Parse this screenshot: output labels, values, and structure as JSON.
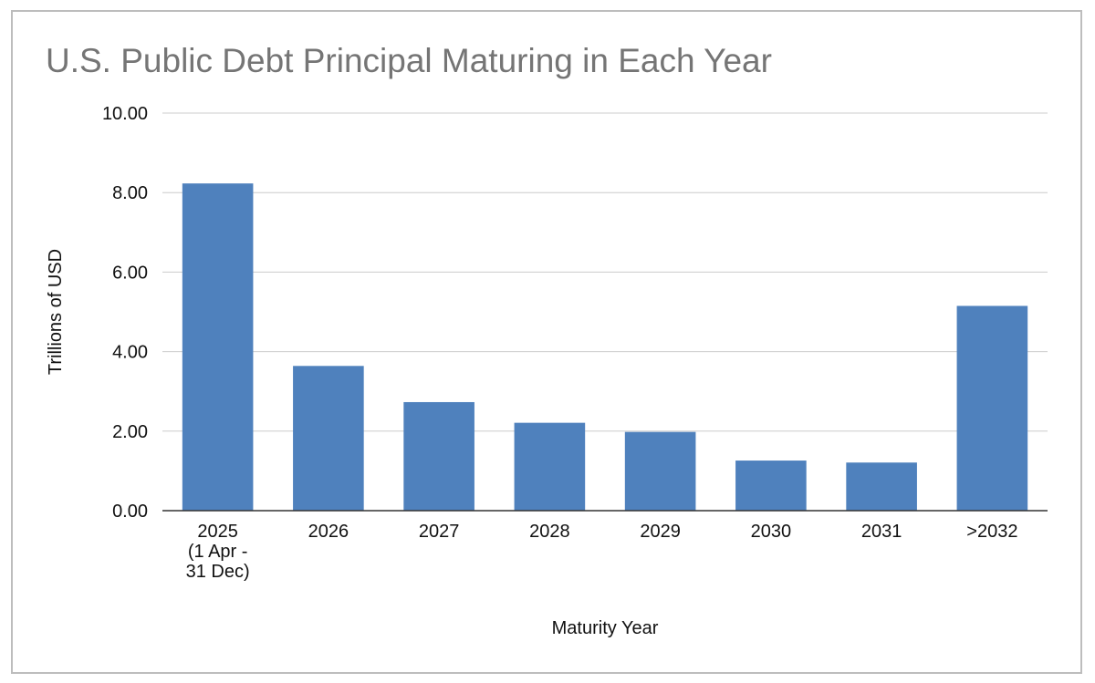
{
  "chart_data": {
    "type": "bar",
    "title": "U.S. Public Debt Principal Maturing in Each Year",
    "xlabel": "Maturity Year",
    "ylabel": "Trillions of USD",
    "categories": [
      [
        "2025",
        "(1 Apr -",
        "31 Dec)"
      ],
      [
        "2026"
      ],
      [
        "2027"
      ],
      [
        "2028"
      ],
      [
        "2029"
      ],
      [
        "2030"
      ],
      [
        "2031"
      ],
      [
        ">2032"
      ]
    ],
    "values": [
      8.23,
      3.64,
      2.73,
      2.21,
      1.98,
      1.26,
      1.21,
      5.15
    ],
    "ylim": [
      0,
      10
    ],
    "yticks": [
      "0.00",
      "2.00",
      "4.00",
      "6.00",
      "8.00",
      "10.00"
    ],
    "grid": true,
    "legend": "none",
    "colors": {
      "bar": "#4f81bd",
      "grid": "#cccccc",
      "axis": "#333333"
    }
  }
}
